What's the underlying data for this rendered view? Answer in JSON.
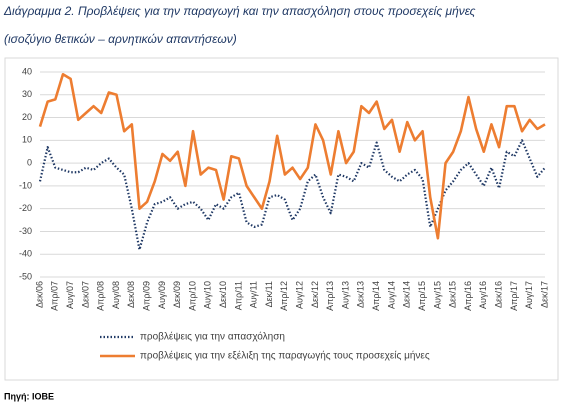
{
  "chart_data": {
    "type": "line",
    "title": "Διάγραμμα 2. Προβλέψεις για την παραγωγή και την απασχόληση στους προσεχείς μήνες",
    "subtitle": "(ισοζύγιο θετικών – αρνητικών απαντήσεων)",
    "source": "Πηγή: ΙΟΒΕ",
    "categories": [
      "Δεκ/06",
      null,
      "Απρ/07",
      null,
      "Αυγ/07",
      null,
      "Δεκ/07",
      null,
      "Απρ/08",
      null,
      "Αυγ/08",
      null,
      "Δεκ/08",
      null,
      "Απρ/09",
      null,
      "Αυγ/09",
      null,
      "Δεκ/09",
      null,
      "Απρ/10",
      null,
      "Αυγ/10",
      null,
      "Δεκ/10",
      null,
      "Απρ/11",
      null,
      "Αυγ/11",
      null,
      "Δεκ/11",
      null,
      "Απρ/12",
      null,
      "Αυγ/12",
      null,
      "Δεκ/12",
      null,
      "Απρ/13",
      null,
      "Αυγ/13",
      null,
      "Δεκ/13",
      null,
      "Απρ/14",
      null,
      "Αυγ/14",
      null,
      "Δεκ/14",
      null,
      "Απρ/15",
      null,
      "Αυγ/15",
      null,
      "Δεκ/15",
      null,
      "Απρ/16",
      null,
      "Αυγ/16",
      null,
      "Δεκ/16",
      null,
      "Απρ/17",
      null,
      "Αυγ/17",
      null,
      "Δεκ/17"
    ],
    "series": [
      {
        "name": "προβλέψεις για την απασχόληση",
        "color": "#1f3864",
        "dash": true,
        "values": [
          -8,
          7,
          -2,
          -3,
          -4,
          -4,
          -2,
          -3,
          0,
          2,
          -2,
          -5,
          -20,
          -38,
          -26,
          -18,
          -17,
          -15,
          -20,
          -18,
          -17,
          -20,
          -25,
          -18,
          -20,
          -15,
          -13,
          -26,
          -28,
          -27,
          -15,
          -14,
          -16,
          -25,
          -20,
          -8,
          -5,
          -15,
          -22,
          -5,
          -6,
          -8,
          0,
          -2,
          9,
          -3,
          -6,
          -8,
          -5,
          -3,
          -7,
          -28,
          -20,
          -12,
          -8,
          -3,
          0,
          -5,
          -10,
          -2,
          -11,
          5,
          3,
          10,
          2,
          -6,
          -2
        ]
      },
      {
        "name": "προβλέψεις για την εξέλιξη της παραγωγής τους προσεχείς μήνες",
        "color": "#ed7d31",
        "dash": false,
        "values": [
          16,
          27,
          28,
          39,
          37,
          19,
          22,
          25,
          22,
          31,
          30,
          14,
          17,
          -20,
          -17,
          -8,
          4,
          1,
          5,
          -10,
          14,
          -5,
          -2,
          -3,
          -16,
          3,
          2,
          -10,
          -15,
          -20,
          -8,
          12,
          -5,
          -2,
          -7,
          -2,
          17,
          10,
          -5,
          14,
          0,
          5,
          25,
          22,
          27,
          15,
          19,
          5,
          18,
          10,
          14,
          -15,
          -33,
          0,
          5,
          14,
          29,
          15,
          5,
          17,
          7,
          25,
          25,
          14,
          19,
          15,
          17
        ]
      }
    ],
    "ylim": [
      -50,
      40
    ],
    "yticks": [
      -50,
      -40,
      -30,
      -20,
      -10,
      0,
      10,
      20,
      30,
      40
    ],
    "grid": true
  }
}
